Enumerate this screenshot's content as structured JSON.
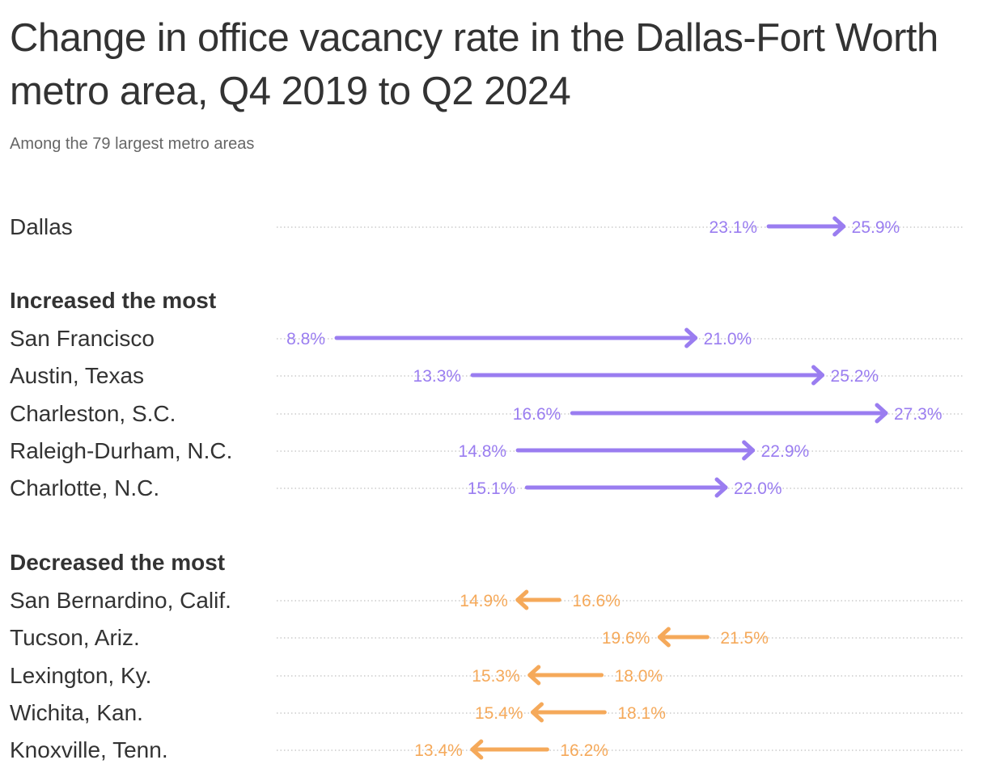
{
  "title": "Change in office vacancy rate in the Dallas-Fort Worth metro area, Q4 2019 to Q2 2024",
  "subtitle": "Among the 79 largest metro areas",
  "colors": {
    "increase": "#9a7df0",
    "decrease": "#f5a95a",
    "text": "#333333",
    "dots": "#cccccc"
  },
  "chart_data": {
    "type": "arrow-dot",
    "unit": "%",
    "groups": [
      {
        "heading": "",
        "rows": [
          {
            "label": "Dallas",
            "start": 23.1,
            "end": 25.9,
            "start_label": "23.1%",
            "end_label": "25.9%"
          }
        ]
      },
      {
        "heading": "Increased the most",
        "rows": [
          {
            "label": "San Francisco",
            "start": 8.8,
            "end": 21.0,
            "start_label": "8.8%",
            "end_label": "21.0%"
          },
          {
            "label": "Austin, Texas",
            "start": 13.3,
            "end": 25.2,
            "start_label": "13.3%",
            "end_label": "25.2%"
          },
          {
            "label": "Charleston, S.C.",
            "start": 16.6,
            "end": 27.3,
            "start_label": "16.6%",
            "end_label": "27.3%"
          },
          {
            "label": "Raleigh-Durham, N.C.",
            "start": 14.8,
            "end": 22.9,
            "start_label": "14.8%",
            "end_label": "22.9%"
          },
          {
            "label": "Charlotte, N.C.",
            "start": 15.1,
            "end": 22.0,
            "start_label": "15.1%",
            "end_label": "22.0%"
          }
        ]
      },
      {
        "heading": "Decreased the most",
        "rows": [
          {
            "label": "San Bernardino, Calif.",
            "start": 16.6,
            "end": 14.9,
            "start_label": "16.6%",
            "end_label": "14.9%"
          },
          {
            "label": "Tucson, Ariz.",
            "start": 21.5,
            "end": 19.6,
            "start_label": "21.5%",
            "end_label": "19.6%"
          },
          {
            "label": "Lexington, Ky.",
            "start": 18.0,
            "end": 15.3,
            "start_label": "18.0%",
            "end_label": "15.3%"
          },
          {
            "label": "Wichita, Kan.",
            "start": 18.1,
            "end": 15.4,
            "start_label": "18.1%",
            "end_label": "15.4%"
          },
          {
            "label": "Knoxville, Tenn.",
            "start": 16.2,
            "end": 13.4,
            "start_label": "16.2%",
            "end_label": "13.4%"
          }
        ]
      }
    ]
  }
}
